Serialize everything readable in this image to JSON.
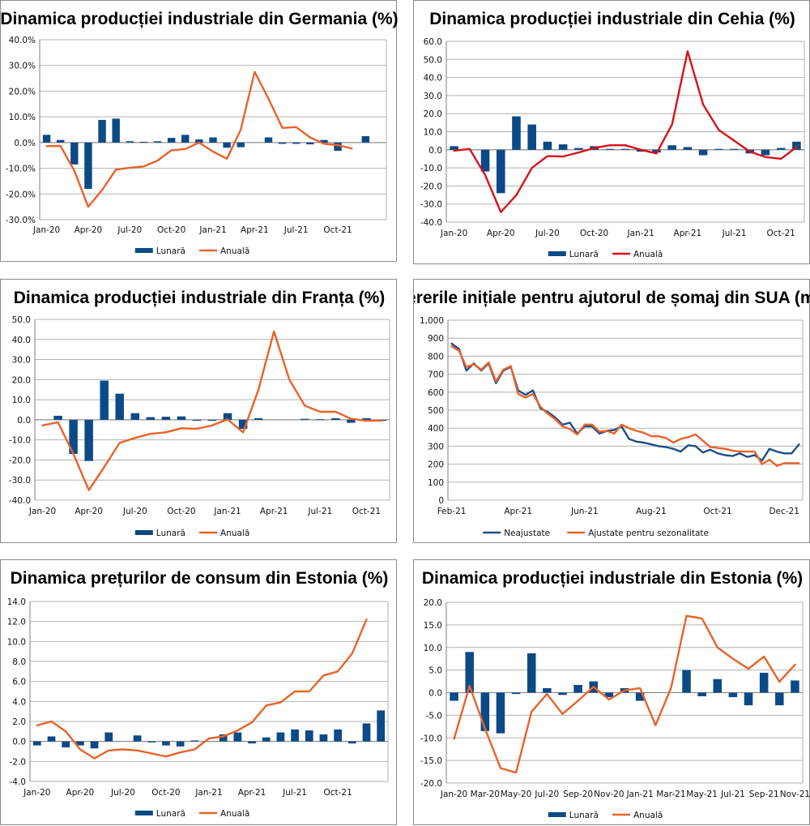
{
  "colors": {
    "bar": "#0b4a86",
    "orange": "#e8632b",
    "red": "#d6131b",
    "navy": "#1f4e87"
  },
  "chart_data": [
    {
      "id": "de",
      "type": "bar+line",
      "title": "Dinamica producției industriale din Germania (%)",
      "ylim": [
        -30,
        40
      ],
      "yticks": [
        "-30.0%",
        "-20.0%",
        "-10.0%",
        "0.0%",
        "10.0%",
        "20.0%",
        "30.0%",
        "40.0%"
      ],
      "ytick_values": [
        -30,
        -20,
        -10,
        0,
        10,
        20,
        30,
        40
      ],
      "xlabels": [
        "Jan-20",
        "Apr-20",
        "Jul-20",
        "Oct-20",
        "Jan-21",
        "Apr-21",
        "Jul-21",
        "Oct-21"
      ],
      "x_label_every": 3,
      "series": [
        {
          "name": "Lunară",
          "kind": "bar",
          "color": "#0b4a86",
          "values": [
            3,
            1,
            -8.5,
            -18,
            8.8,
            9.3,
            0.5,
            0.3,
            0.5,
            1.8,
            3,
            1.2,
            2,
            -2,
            -1.8,
            0,
            2,
            -0.5,
            -0.5,
            -0.7,
            1,
            -3.2,
            0,
            2.5,
            0
          ]
        },
        {
          "name": "Anuală",
          "kind": "line",
          "color": "#e8632b",
          "values": [
            -1.4,
            -1.3,
            -11,
            -25,
            -18.5,
            -10.5,
            -9.8,
            -9.3,
            -7,
            -3,
            -2.5,
            0,
            -3.5,
            -6.3,
            5,
            27.5,
            17,
            5.7,
            6,
            2,
            -0.5,
            -1,
            -2.3
          ]
        }
      ],
      "legend": [
        "Lunară",
        "Anuală"
      ]
    },
    {
      "id": "cz",
      "type": "bar+line",
      "title": "Dinamica producției industriale din Cehia (%)",
      "ylim": [
        -40,
        60
      ],
      "yticks": [
        "-40.0",
        "-30.0",
        "-20.0",
        "-10.0",
        "0.0",
        "10.0",
        "20.0",
        "30.0",
        "40.0",
        "50.0",
        "60.0"
      ],
      "ytick_values": [
        -40,
        -30,
        -20,
        -10,
        0,
        10,
        20,
        30,
        40,
        50,
        60
      ],
      "xlabels": [
        "Jan-20",
        "Apr-20",
        "Jul-20",
        "Oct-20",
        "Jan-21",
        "Apr-21",
        "Jul-21",
        "Oct-21"
      ],
      "x_label_every": 3,
      "series": [
        {
          "name": "Lunară",
          "kind": "bar",
          "color": "#0b4a86",
          "values": [
            2,
            0,
            -12,
            -24,
            18.5,
            14,
            4.5,
            3,
            1,
            2,
            0.5,
            0.5,
            -1,
            -1.5,
            2.5,
            1.5,
            -3,
            0.5,
            0.5,
            -2,
            -3,
            1,
            4.5
          ]
        },
        {
          "name": "Anuală",
          "kind": "line",
          "color": "#d6131b",
          "values": [
            -0.5,
            0.5,
            -14,
            -34.5,
            -25,
            -10,
            -3.5,
            -3.7,
            -1.5,
            1,
            2.5,
            2.5,
            0,
            -2,
            14,
            54.5,
            25,
            11,
            5,
            -1,
            -4,
            -5,
            1.5
          ]
        }
      ],
      "legend": [
        "Lunară",
        "Anuală"
      ]
    },
    {
      "id": "fr",
      "type": "bar+line",
      "title": "Dinamica producției industriale din Franța (%)",
      "ylim": [
        -40,
        50
      ],
      "yticks": [
        "-40.0",
        "-30.0",
        "-20.0",
        "-10.0",
        "0.0",
        "10.0",
        "20.0",
        "30.0",
        "40.0",
        "50.0"
      ],
      "ytick_values": [
        -40,
        -30,
        -20,
        -10,
        0,
        10,
        20,
        30,
        40,
        50
      ],
      "xlabels": [
        "Jan-20",
        "Apr-20",
        "Jul-20",
        "Oct-20",
        "Jan-21",
        "Apr-21",
        "Jul-21",
        "Oct-21"
      ],
      "x_label_every": 3,
      "series": [
        {
          "name": "Lunară",
          "kind": "bar",
          "color": "#0b4a86",
          "values": [
            0,
            2,
            -17,
            -20.5,
            19.5,
            13,
            3.3,
            1.3,
            1.5,
            1.7,
            -0.5,
            -0.5,
            3.3,
            -4.5,
            0.8,
            0,
            0,
            0.5,
            0.3,
            0.8,
            -1.5,
            0.8,
            -0.5
          ]
        },
        {
          "name": "Anuală",
          "kind": "line",
          "color": "#e8632b",
          "values": [
            -2.8,
            -1.2,
            -17,
            -35,
            -23.5,
            -11.5,
            -9,
            -7,
            -6.2,
            -4.2,
            -4.5,
            -2.8,
            0.2,
            -6.2,
            15,
            44,
            20,
            7,
            4,
            4,
            0.5,
            -0.5,
            -0.5
          ]
        }
      ],
      "legend": [
        "Lunară",
        "Anuală"
      ]
    },
    {
      "id": "us",
      "type": "line",
      "title": "Cererile inițiale pentru ajutorul de șomaj din SUA (mii)",
      "ylim": [
        0,
        1000
      ],
      "yticks": [
        "0",
        "100",
        "200",
        "300",
        "400",
        "500",
        "600",
        "700",
        "800",
        "900",
        "1,000"
      ],
      "ytick_values": [
        0,
        100,
        200,
        300,
        400,
        500,
        600,
        700,
        800,
        900,
        1000
      ],
      "xlabels": [
        "Feb-21",
        "Apr-21",
        "Jun-21",
        "Aug-21",
        "Oct-21",
        "Dec-21"
      ],
      "x_label_every": 9,
      "series": [
        {
          "name": "Neajustate",
          "kind": "line",
          "color": "#1f4e87",
          "values": [
            870,
            840,
            720,
            760,
            720,
            760,
            650,
            720,
            740,
            610,
            585,
            610,
            510,
            490,
            460,
            420,
            430,
            370,
            410,
            410,
            370,
            385,
            390,
            410,
            340,
            325,
            320,
            310,
            300,
            295,
            285,
            270,
            305,
            300,
            265,
            280,
            260,
            250,
            245,
            260,
            240,
            250,
            220,
            285,
            270,
            260,
            260,
            310
          ]
        },
        {
          "name": "Ajustate pentru sezonalitate",
          "kind": "line",
          "color": "#e8632b",
          "values": [
            855,
            830,
            740,
            755,
            725,
            765,
            660,
            725,
            745,
            590,
            570,
            590,
            520,
            480,
            450,
            410,
            395,
            365,
            420,
            420,
            380,
            385,
            370,
            420,
            400,
            385,
            375,
            355,
            355,
            345,
            320,
            340,
            350,
            365,
            330,
            295,
            290,
            285,
            275,
            270,
            270,
            270,
            200,
            225,
            190,
            205,
            205,
            205
          ]
        }
      ],
      "legend": [
        "Neajustate",
        "Ajustate pentru sezonalitate"
      ]
    },
    {
      "id": "ee_cpi",
      "type": "bar+line",
      "title": "Dinamica prețurilor de consum din Estonia (%)",
      "ylim": [
        -4,
        14
      ],
      "yticks": [
        "-4.0",
        "-2.0",
        "0.0",
        "2.0",
        "4.0",
        "6.0",
        "8.0",
        "10.0",
        "12.0",
        "14.0"
      ],
      "ytick_values": [
        -4,
        -2,
        0,
        2,
        4,
        6,
        8,
        10,
        12,
        14
      ],
      "xlabels": [
        "Jan-20",
        "Apr-20",
        "Jul-20",
        "Oct-20",
        "Jan-21",
        "Apr-21",
        "Jul-21",
        "Oct-21"
      ],
      "x_label_every": 3,
      "series": [
        {
          "name": "Lunară",
          "kind": "bar",
          "color": "#0b4a86",
          "values": [
            -0.4,
            0.5,
            -0.6,
            -0.4,
            -0.7,
            0.9,
            0,
            0.6,
            -0.1,
            -0.4,
            -0.5,
            0.1,
            0,
            0.7,
            0.9,
            -0.2,
            0.4,
            0.9,
            1.2,
            1.1,
            0.7,
            1.2,
            -0.2,
            1.8,
            3.1
          ]
        },
        {
          "name": "Anuală",
          "kind": "line",
          "color": "#e8632b",
          "values": [
            1.6,
            2,
            1,
            -0.8,
            -1.7,
            -0.9,
            -0.8,
            -0.9,
            -1.2,
            -1.5,
            -1.1,
            -0.8,
            0.3,
            0.5,
            1.1,
            1.9,
            3.6,
            3.9,
            5,
            5,
            6.6,
            7,
            8.8,
            12.2
          ]
        }
      ],
      "legend": [
        "Lunară",
        "Anuală"
      ]
    },
    {
      "id": "ee_ind",
      "type": "bar+line",
      "title": "Dinamica producției industriale din Estonia (%)",
      "ylim": [
        -20,
        20
      ],
      "yticks": [
        "-20.0",
        "-15.0",
        "-10.0",
        "-5.0",
        "0.0",
        "5.0",
        "10.0",
        "15.0",
        "20.0"
      ],
      "ytick_values": [
        -20,
        -15,
        -10,
        -5,
        0,
        5,
        10,
        15,
        20
      ],
      "xlabels": [
        "Jan-20",
        "Mar-20",
        "May-20",
        "Jul-20",
        "Sep-20",
        "Nov-20",
        "Jan-21",
        "Mar-21",
        "May-21",
        "Jul-21",
        "Sep-21",
        "Nov-21"
      ],
      "x_label_every": 2,
      "series": [
        {
          "name": "Lunară",
          "kind": "bar",
          "color": "#0b4a86",
          "values": [
            -1.8,
            9,
            -8.5,
            -9,
            -0.3,
            8.7,
            1,
            -0.5,
            1.7,
            2.5,
            -1,
            1,
            -1.8,
            0,
            0,
            5,
            -0.8,
            3,
            -1,
            -2.8,
            4.4,
            -2.8,
            2.7
          ]
        },
        {
          "name": "Anuală",
          "kind": "line",
          "color": "#e8632b",
          "values": [
            -10.2,
            1.5,
            -8,
            -16.7,
            -17.7,
            -4.2,
            -0.3,
            -4.7,
            -1.8,
            1.3,
            -1.5,
            0.5,
            1,
            -7.2,
            1,
            17,
            16.4,
            10,
            7.5,
            5.3,
            8,
            2.4,
            6.2
          ]
        }
      ],
      "legend": [
        "Lunară",
        "Anuală"
      ]
    }
  ]
}
